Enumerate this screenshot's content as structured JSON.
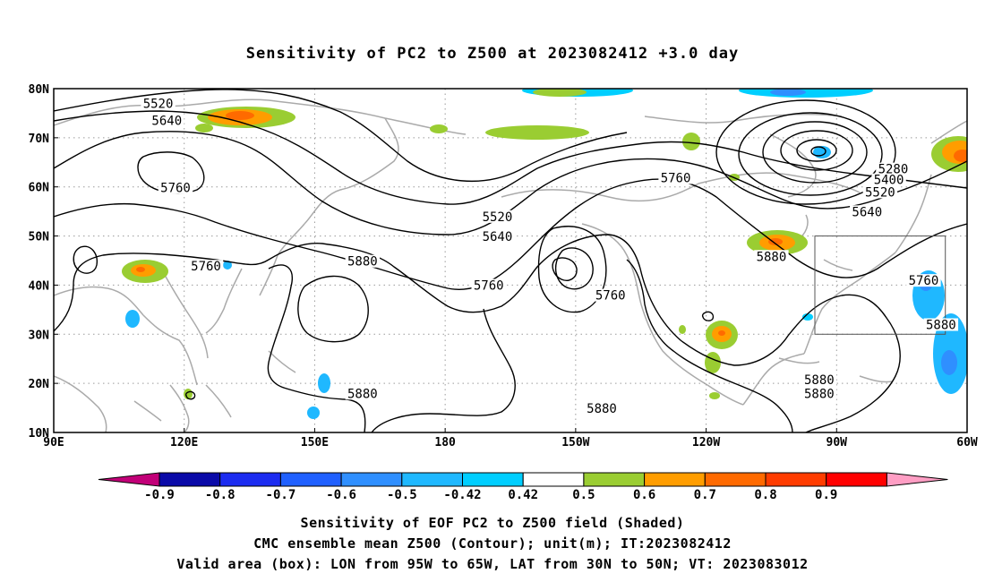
{
  "title": "Sensitivity of PC2 to Z500 at 2023082412 +3.0 day",
  "map": {
    "lon_range_deg_east": [
      90,
      300
    ],
    "lat_range_deg": [
      10,
      80
    ],
    "x_ticks": [
      {
        "lon": 90,
        "label": "90E"
      },
      {
        "lon": 120,
        "label": "120E"
      },
      {
        "lon": 150,
        "label": "150E"
      },
      {
        "lon": 180,
        "label": "180"
      },
      {
        "lon": 210,
        "label": "150W"
      },
      {
        "lon": 240,
        "label": "120W"
      },
      {
        "lon": 270,
        "label": "90W"
      },
      {
        "lon": 300,
        "label": "60W"
      }
    ],
    "y_ticks": [
      {
        "lat": 10,
        "label": "10N"
      },
      {
        "lat": 20,
        "label": "20N"
      },
      {
        "lat": 30,
        "label": "30N"
      },
      {
        "lat": 40,
        "label": "40N"
      },
      {
        "lat": 50,
        "label": "50N"
      },
      {
        "lat": 60,
        "label": "60N"
      },
      {
        "lat": 70,
        "label": "70N"
      },
      {
        "lat": 80,
        "label": "80N"
      }
    ],
    "gridlines": "dotted",
    "valid_box": {
      "lon_min": 265,
      "lon_max": 295,
      "lat_min": 30,
      "lat_max": 50
    },
    "contour_labels": [
      {
        "text": "5520",
        "lon": 114,
        "lat": 76.6
      },
      {
        "text": "5640",
        "lon": 116,
        "lat": 73.2
      },
      {
        "text": "5760",
        "lon": 118,
        "lat": 59.5
      },
      {
        "text": "5760",
        "lon": 125,
        "lat": 43.5
      },
      {
        "text": "5880",
        "lon": 161,
        "lat": 44.5
      },
      {
        "text": "5880",
        "lon": 161,
        "lat": 17.6
      },
      {
        "text": "5520",
        "lon": 192,
        "lat": 53.6
      },
      {
        "text": "5640",
        "lon": 192,
        "lat": 49.6
      },
      {
        "text": "5760",
        "lon": 190,
        "lat": 39.6
      },
      {
        "text": "5760",
        "lon": 218,
        "lat": 37.6
      },
      {
        "text": "5760",
        "lon": 233,
        "lat": 61.5
      },
      {
        "text": "5880",
        "lon": 216,
        "lat": 14.6
      },
      {
        "text": "5880",
        "lon": 255,
        "lat": 45.5
      },
      {
        "text": "5280",
        "lon": 283,
        "lat": 63.3
      },
      {
        "text": "5400",
        "lon": 282,
        "lat": 61.1
      },
      {
        "text": "5520",
        "lon": 280,
        "lat": 58.6
      },
      {
        "text": "5640",
        "lon": 277,
        "lat": 54.6
      },
      {
        "text": "5760",
        "lon": 290,
        "lat": 40.6
      },
      {
        "text": "5880",
        "lon": 294,
        "lat": 31.6
      },
      {
        "text": "5880",
        "lon": 266,
        "lat": 20.4
      },
      {
        "text": "5880",
        "lon": 266,
        "lat": 17.6
      }
    ]
  },
  "colorbar": {
    "colors": [
      "#c20078",
      "#0a0aa8",
      "#1c2cf0",
      "#2060ff",
      "#2f8fff",
      "#1fb8ff",
      "#00ceff",
      "#ffffff",
      "#9acd32",
      "#ff9d00",
      "#ff6a00",
      "#ff3c00",
      "#ff0000",
      "#ff9ec4"
    ],
    "labels": [
      "-0.9",
      "-0.8",
      "-0.7",
      "-0.6",
      "-0.5",
      "-0.42",
      "0.42",
      "0.5",
      "0.6",
      "0.7",
      "0.8",
      "0.9"
    ]
  },
  "captions": [
    "Sensitivity of EOF PC2 to Z500 field (Shaded)",
    "CMC ensemble mean Z500 (Contour); unit(m); IT:2023082412",
    "Valid area (box): LON from 95W to 65W, LAT from 30N to 50N; VT: 2023083012"
  ]
}
